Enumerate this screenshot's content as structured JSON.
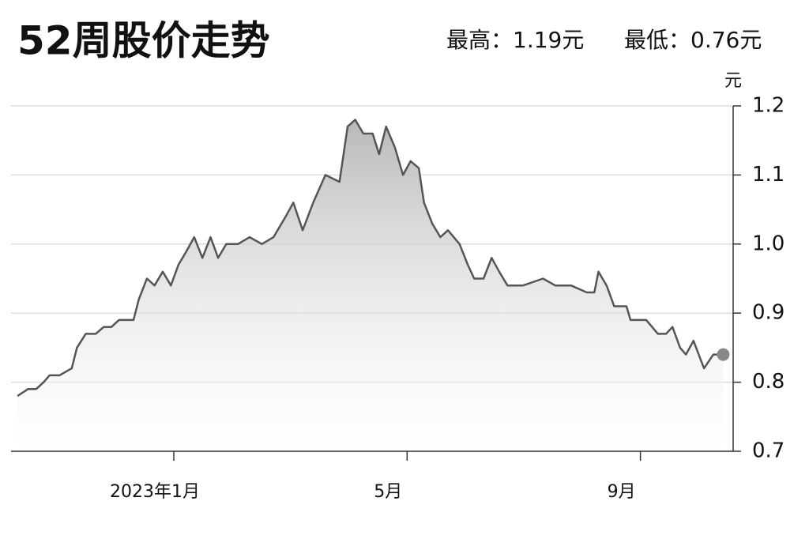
{
  "chart_data": {
    "type": "area",
    "title": "52周股价走势",
    "high_label": "最高：1.19元",
    "low_label": "最低：0.76元",
    "y_unit": "元",
    "x": [
      -2.68,
      -2.5,
      -2.36,
      -2.23,
      -2.13,
      -1.96,
      -1.75,
      -1.66,
      -1.51,
      -1.34,
      -1.2,
      -1.07,
      -0.94,
      -0.69,
      -0.6,
      -0.46,
      -0.33,
      -0.19,
      -0.05,
      0.08,
      0.22,
      0.35,
      0.49,
      0.63,
      0.76,
      0.9,
      1.1,
      1.3,
      1.51,
      1.71,
      1.92,
      2.05,
      2.21,
      2.39,
      2.6,
      2.84,
      2.98,
      3.11,
      3.25,
      3.41,
      3.52,
      3.64,
      3.79,
      3.93,
      4.06,
      4.2,
      4.29,
      4.43,
      4.57,
      4.7,
      4.9,
      5.04,
      5.15,
      5.31,
      5.45,
      5.58,
      5.72,
      5.99,
      6.33,
      6.54,
      6.81,
      7.08,
      7.21,
      7.28,
      7.42,
      7.55,
      7.76,
      7.83,
      8.1,
      8.3,
      8.44,
      8.55,
      8.68,
      8.78,
      8.91,
      9.09,
      9.25,
      9.42
    ],
    "values": [
      0.78,
      0.79,
      0.79,
      0.8,
      0.81,
      0.81,
      0.82,
      0.85,
      0.87,
      0.87,
      0.88,
      0.88,
      0.89,
      0.89,
      0.92,
      0.95,
      0.94,
      0.96,
      0.94,
      0.97,
      0.99,
      1.01,
      0.98,
      1.01,
      0.98,
      1.0,
      1.0,
      1.01,
      1.0,
      1.01,
      1.04,
      1.06,
      1.02,
      1.06,
      1.1,
      1.09,
      1.17,
      1.18,
      1.16,
      1.16,
      1.13,
      1.17,
      1.14,
      1.1,
      1.12,
      1.11,
      1.06,
      1.03,
      1.01,
      1.02,
      1.0,
      0.97,
      0.95,
      0.95,
      0.98,
      0.96,
      0.94,
      0.94,
      0.95,
      0.94,
      0.94,
      0.93,
      0.93,
      0.96,
      0.94,
      0.91,
      0.91,
      0.89,
      0.89,
      0.87,
      0.87,
      0.88,
      0.85,
      0.84,
      0.86,
      0.82,
      0.84,
      0.84
    ],
    "color": "#555555",
    "xlim": [
      -2.79,
      9.59
    ],
    "xticks": [
      {
        "value": 0,
        "label": "2023年1月"
      },
      {
        "value": 4,
        "label": "5月"
      },
      {
        "value": 8,
        "label": "9月"
      }
    ],
    "ylim": [
      0.7,
      1.2
    ],
    "yticks": [
      0.7,
      0.8,
      0.9,
      {
        "value": 1,
        "label": "1.0"
      },
      1.1,
      1.2
    ],
    "grid": true
  }
}
